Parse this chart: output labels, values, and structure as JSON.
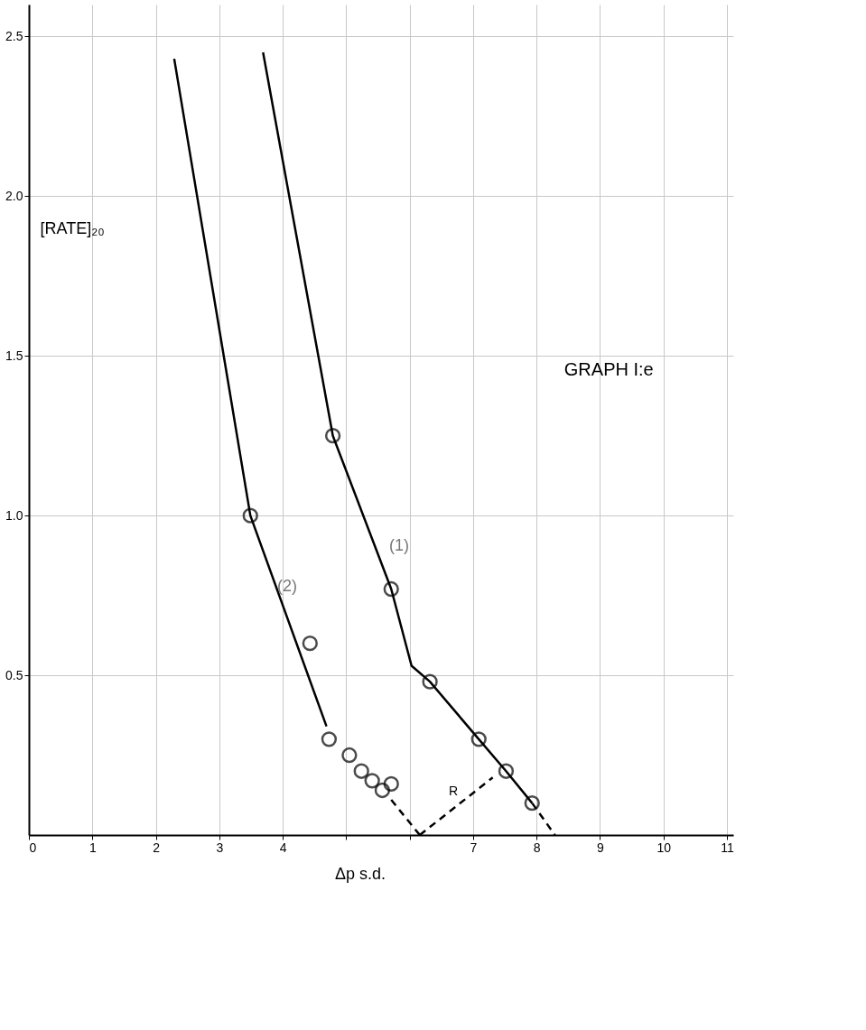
{
  "chart_data": {
    "type": "scatter",
    "title": "GRAPH I:e",
    "xlabel": "Δp s.d.",
    "ylabel": "[RATE]₂₀",
    "xlim": [
      0,
      11.1
    ],
    "ylim": [
      0,
      2.6
    ],
    "xticks": [
      0,
      1,
      2,
      3,
      4,
      {
        "value": 5,
        "label": null
      },
      {
        "value": 6,
        "label": null
      },
      7,
      8,
      9,
      10,
      11
    ],
    "yticks": [
      0.5,
      {
        "value": 1,
        "label": "1.0"
      },
      1.5,
      {
        "value": 2,
        "label": "2.0"
      },
      2.5
    ],
    "grid": true,
    "series": [
      {
        "marker": "circle",
        "color": "#000000",
        "x": [
          4.79,
          5.71,
          6.32,
          7.09,
          7.52,
          7.93
        ],
        "values": [
          1.25,
          0.77,
          0.48,
          0.3,
          0.2,
          0.1
        ]
      },
      {
        "marker": "circle",
        "color": "#000000",
        "x": [
          3.49,
          4.43,
          4.73,
          5.05,
          5.24,
          5.41,
          5.57,
          5.71
        ],
        "values": [
          1.0,
          0.6,
          0.3,
          0.25,
          0.2,
          0.17,
          0.14,
          0.16
        ]
      },
      {
        "type": "line",
        "line_style": "solid",
        "color": "#000000",
        "x": [
          3.69,
          4.79,
          5.71,
          6.03,
          6.32,
          7.09,
          7.52,
          7.93
        ],
        "values": [
          2.45,
          1.25,
          0.77,
          0.53,
          0.48,
          0.3,
          0.2,
          0.1
        ]
      },
      {
        "type": "line",
        "line_style": "solid",
        "color": "#000000",
        "x": [
          2.29,
          3.49,
          4.69
        ],
        "values": [
          2.43,
          1.0,
          0.34
        ]
      },
      {
        "type": "line",
        "line_style": "dashed",
        "color": "#000000",
        "x": [
          7.93,
          8.29
        ],
        "values": [
          0.1,
          0
        ]
      },
      {
        "type": "line",
        "line_style": "dashed",
        "color": "#000000",
        "x": [
          5.71,
          6.16
        ],
        "values": [
          0.11,
          0
        ]
      },
      {
        "type": "line",
        "line_style": "dashed",
        "color": "#000000",
        "x": [
          6.16,
          7.31
        ],
        "values": [
          0,
          0.18
        ]
      }
    ],
    "annotations": [
      "(1)",
      "(2)",
      "R"
    ]
  }
}
